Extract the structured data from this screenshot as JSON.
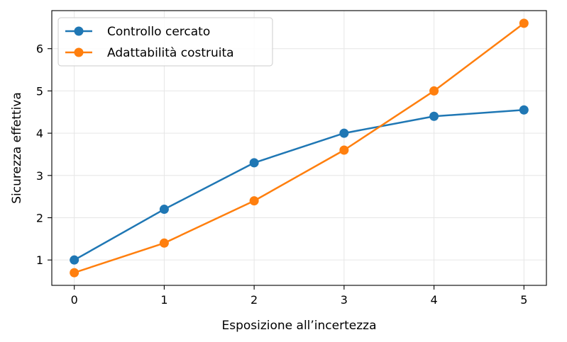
{
  "chart_data": {
    "type": "line",
    "x": [
      0,
      1,
      2,
      3,
      4,
      5
    ],
    "series": [
      {
        "name": "Controllo cercato",
        "values": [
          1.0,
          2.2,
          3.3,
          4.0,
          4.4,
          4.55
        ],
        "color": "#1f77b4"
      },
      {
        "name": "Adattabilità costruita",
        "values": [
          0.7,
          1.4,
          2.4,
          3.6,
          5.0,
          6.6
        ],
        "color": "#ff7f0e"
      }
    ],
    "xlabel": "Esposizione all’incertezza",
    "ylabel": "Sicurezza effettiva",
    "xlim": [
      -0.25,
      5.25
    ],
    "ylim": [
      0.4,
      6.9
    ],
    "xticks": [
      0,
      1,
      2,
      3,
      4,
      5
    ],
    "yticks": [
      1,
      2,
      3,
      4,
      5,
      6
    ],
    "grid": true,
    "legend": "top-left"
  }
}
